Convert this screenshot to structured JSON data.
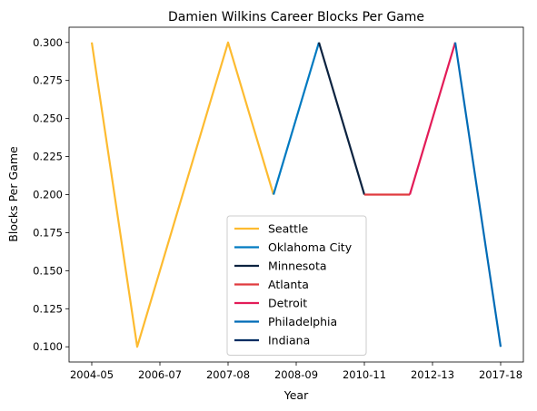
{
  "chart_data": {
    "type": "line",
    "title": "Damien Wilkins Career Blocks Per Game",
    "xlabel": "Year",
    "ylabel": "Blocks Per Game",
    "x_tick_labels": [
      "2004-05",
      "2006-07",
      "2007-08",
      "2008-09",
      "2010-11",
      "2012-13",
      "2017-18"
    ],
    "y_ticks": [
      0.1,
      0.125,
      0.15,
      0.175,
      0.2,
      0.225,
      0.25,
      0.275,
      0.3
    ],
    "y_tick_labels": [
      "0.100",
      "0.125",
      "0.150",
      "0.175",
      "0.200",
      "0.225",
      "0.250",
      "0.275",
      "0.300"
    ],
    "ylim": [
      0.09,
      0.31
    ],
    "grid": false,
    "legend_position": "lower center",
    "series": [
      {
        "name": "Seattle",
        "color": "#FDBB30",
        "points": [
          [
            0,
            0.3
          ],
          [
            1,
            0.1
          ],
          [
            3,
            0.3
          ],
          [
            4,
            0.2
          ]
        ]
      },
      {
        "name": "Oklahoma City",
        "color": "#007AC1",
        "points": [
          [
            4,
            0.2
          ],
          [
            5,
            0.3
          ]
        ]
      },
      {
        "name": "Minnesota",
        "color": "#0C2340",
        "points": [
          [
            5,
            0.3
          ],
          [
            6,
            0.2
          ]
        ]
      },
      {
        "name": "Atlanta",
        "color": "#E03A3E",
        "points": [
          [
            6,
            0.2
          ],
          [
            7,
            0.2
          ]
        ]
      },
      {
        "name": "Detroit",
        "color": "#E31C58",
        "points": [
          [
            7,
            0.2
          ],
          [
            8,
            0.3
          ]
        ]
      },
      {
        "name": "Philadelphia",
        "color": "#006BB6",
        "points": [
          [
            8,
            0.3
          ],
          [
            9,
            0.1
          ]
        ]
      },
      {
        "name": "Indiana",
        "color": "#002D62",
        "points": []
      }
    ]
  }
}
